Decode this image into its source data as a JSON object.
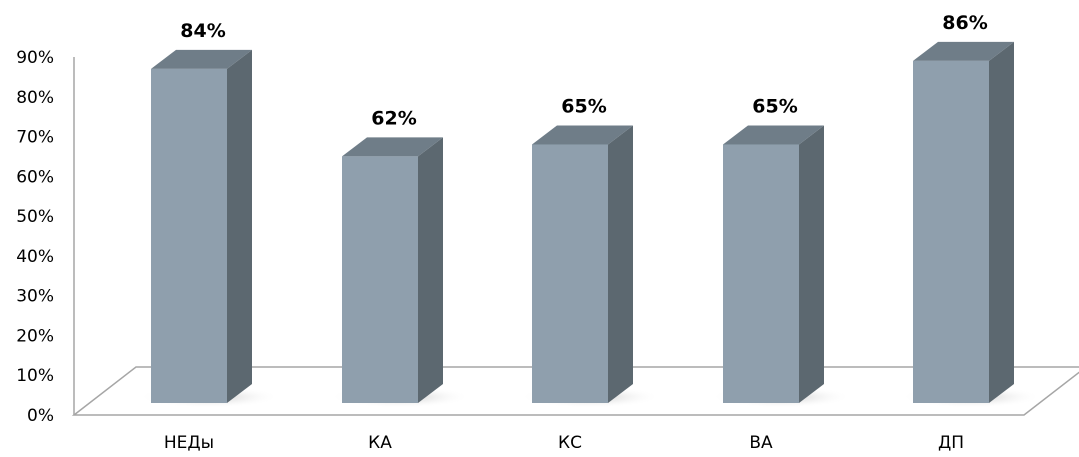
{
  "chart_data": {
    "type": "bar",
    "style": "3d-column",
    "categories": [
      "НЕДы",
      "КА",
      "КС",
      "ВА",
      "ДП"
    ],
    "values": [
      84,
      62,
      65,
      65,
      86
    ],
    "data_labels": [
      "84%",
      "62%",
      "65%",
      "65%",
      "86%"
    ],
    "y_ticks": [
      "0%",
      "10%",
      "20%",
      "30%",
      "40%",
      "50%",
      "60%",
      "70%",
      "80%",
      "90%"
    ],
    "ylim": [
      0,
      90
    ],
    "grid": false,
    "legend": "none",
    "colors": {
      "bar_front": "#8f9fad",
      "bar_side": "#5c6870",
      "bar_top": "#6f7d88",
      "floor_fill": "#ffffff",
      "axis_line": "#a6a6a6"
    }
  }
}
